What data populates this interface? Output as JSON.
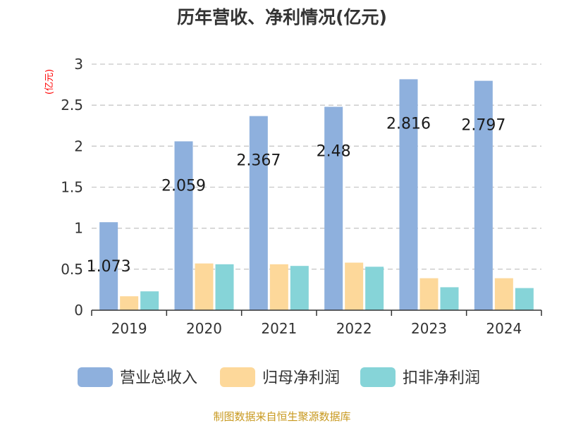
{
  "chart_data": {
    "type": "bar",
    "title": "历年营收、净利情况(亿元)",
    "ylabel": "(亿元)",
    "xlabel": "",
    "categories": [
      "2019",
      "2020",
      "2021",
      "2022",
      "2023",
      "2024"
    ],
    "ylim": [
      0,
      3
    ],
    "yticks": [
      0,
      0.5,
      1,
      1.5,
      2,
      2.5,
      3
    ],
    "ytick_labels": [
      "0",
      "0.5",
      "1",
      "1.5",
      "2",
      "2.5",
      "3"
    ],
    "grid": true,
    "legend_position": "bottom",
    "series": [
      {
        "name": "营业总收入",
        "color": "#8eb0dd",
        "values": [
          1.073,
          2.059,
          2.367,
          2.48,
          2.816,
          2.797
        ],
        "value_labels": [
          "1.073",
          "2.059",
          "2.367",
          "2.48",
          "2.816",
          "2.797"
        ]
      },
      {
        "name": "归母净利润",
        "color": "#fdd89a",
        "values": [
          0.17,
          0.57,
          0.56,
          0.58,
          0.39,
          0.39
        ]
      },
      {
        "name": "扣非净利润",
        "color": "#86d4d8",
        "values": [
          0.23,
          0.56,
          0.54,
          0.53,
          0.28,
          0.27
        ]
      }
    ],
    "source": "制图数据来自恒生聚源数据库"
  }
}
